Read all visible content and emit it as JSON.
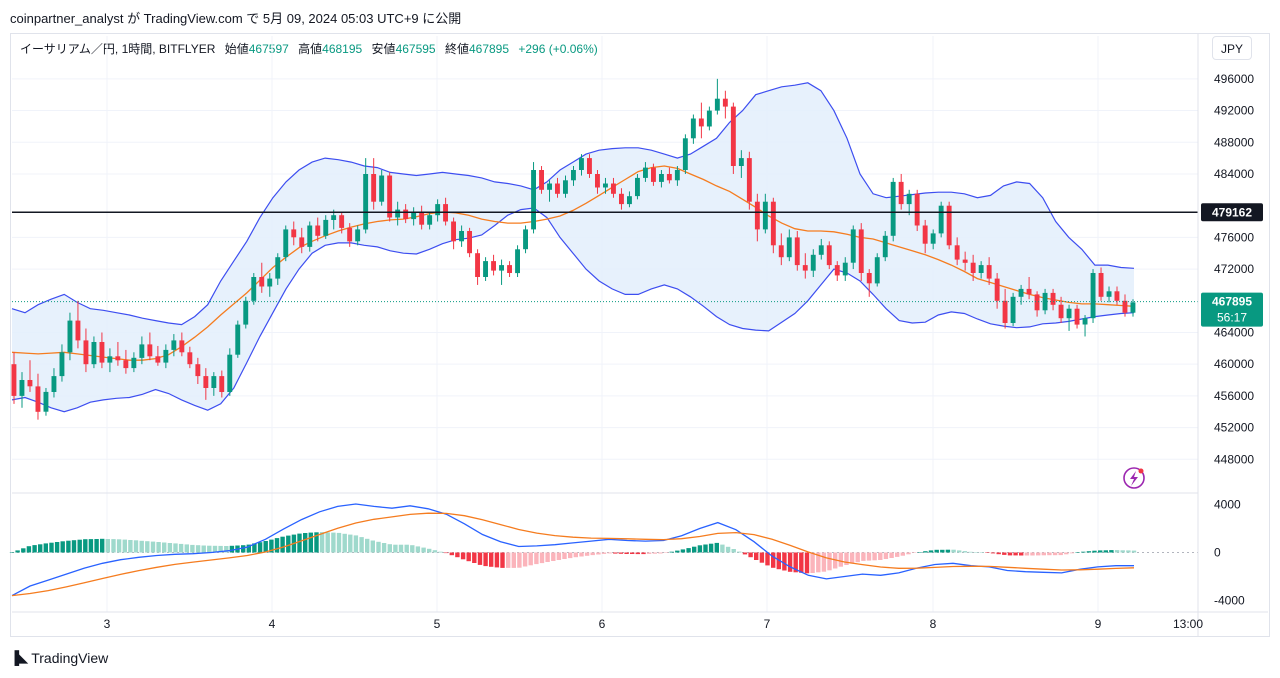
{
  "header": {
    "published_text": "coinpartner_analyst が TradingView.com で 5月 09, 2024 05:03 UTC+9 に公開"
  },
  "legend": {
    "symbol": "イーサリアム／円, 1時間, BITFLYER",
    "open_label": "始値",
    "open_value": "467597",
    "high_label": "高値",
    "high_value": "468195",
    "low_label": "安値",
    "low_value": "467595",
    "close_label": "終値",
    "close_value": "467895",
    "change": "+296 (+0.06%)"
  },
  "currency_button": "JPY",
  "brand": {
    "name": "TradingView"
  },
  "colors": {
    "up": "#089981",
    "down": "#f23645",
    "bb_band": "#3d4ef0",
    "bb_fill": "#e3effb",
    "sma": "#f57c1f",
    "hline": "#131722",
    "macd_pos_strong": "#089981",
    "macd_pos_weak": "#9fd9cc",
    "macd_neg_strong": "#f23645",
    "macd_neg_weak": "#fbb4bb"
  },
  "chart_data": {
    "type": "candlestick",
    "price_axis": {
      "ticks": [
        "496000",
        "492000",
        "488000",
        "484000",
        "476000",
        "472000",
        "464000",
        "460000",
        "456000",
        "452000",
        "448000"
      ],
      "range": [
        444000,
        498000
      ]
    },
    "time_axis": {
      "ticks": [
        "3",
        "4",
        "5",
        "6",
        "7",
        "8",
        "9",
        "13:00"
      ]
    },
    "horizontal_line": {
      "value": 479162,
      "label": "479162"
    },
    "last_price": {
      "value": 467895,
      "label": "467895",
      "countdown": "56:17"
    },
    "macd_axis": {
      "ticks": [
        "4000",
        "0",
        "-4000"
      ],
      "range": [
        -4800,
        4800
      ]
    },
    "candles_ohlc": [
      [
        460000,
        461500,
        455000,
        456000
      ],
      [
        456000,
        459000,
        454500,
        458000
      ],
      [
        458000,
        460500,
        456500,
        457200
      ],
      [
        457200,
        458800,
        453000,
        454000
      ],
      [
        454000,
        457000,
        453500,
        456500
      ],
      [
        456500,
        459500,
        455800,
        458500
      ],
      [
        458500,
        462500,
        457800,
        461500
      ],
      [
        461500,
        466500,
        460500,
        465500
      ],
      [
        465500,
        468000,
        462000,
        463000
      ],
      [
        463000,
        464500,
        459000,
        460000
      ],
      [
        460000,
        463500,
        459500,
        462800
      ],
      [
        462800,
        464000,
        459500,
        460200
      ],
      [
        460200,
        462000,
        459000,
        461000
      ],
      [
        461000,
        462800,
        459800,
        460500
      ],
      [
        460500,
        461800,
        458800,
        459500
      ],
      [
        459500,
        461500,
        459000,
        460800
      ],
      [
        460800,
        463500,
        460000,
        462500
      ],
      [
        462500,
        464000,
        460500,
        461000
      ],
      [
        461000,
        462300,
        459800,
        460200
      ],
      [
        460200,
        462500,
        459500,
        461800
      ],
      [
        461800,
        463800,
        461000,
        463000
      ],
      [
        463000,
        464000,
        461000,
        461500
      ],
      [
        461500,
        462200,
        459500,
        460000
      ],
      [
        460000,
        460800,
        457500,
        458500
      ],
      [
        458500,
        459500,
        455500,
        457000
      ],
      [
        457000,
        459000,
        456000,
        458500
      ],
      [
        458500,
        459200,
        455800,
        456500
      ],
      [
        456500,
        462000,
        456000,
        461200
      ],
      [
        461200,
        465500,
        460800,
        465000
      ],
      [
        465000,
        468500,
        464500,
        468000
      ],
      [
        468000,
        471500,
        467500,
        471000
      ],
      [
        471000,
        472800,
        469000,
        469800
      ],
      [
        469800,
        471500,
        468500,
        470800
      ],
      [
        470800,
        474000,
        470000,
        473500
      ],
      [
        473500,
        477500,
        473000,
        477000
      ],
      [
        477000,
        478000,
        475000,
        476000
      ],
      [
        476000,
        477200,
        474000,
        474800
      ],
      [
        474800,
        478000,
        474200,
        477500
      ],
      [
        477500,
        478500,
        475500,
        476200
      ],
      [
        476200,
        478800,
        475800,
        478200
      ],
      [
        478200,
        479500,
        477000,
        478800
      ],
      [
        478800,
        479200,
        476500,
        477200
      ],
      [
        477200,
        477800,
        474800,
        475500
      ],
      [
        475500,
        477500,
        475000,
        477000
      ],
      [
        477000,
        486000,
        476500,
        484000
      ],
      [
        484000,
        486000,
        479500,
        480500
      ],
      [
        480500,
        484500,
        480000,
        483800
      ],
      [
        483800,
        484200,
        478000,
        478500
      ],
      [
        478500,
        480500,
        477500,
        479500
      ],
      [
        479500,
        480200,
        477800,
        478300
      ],
      [
        478300,
        479800,
        477500,
        479200
      ],
      [
        479200,
        480000,
        477000,
        477600
      ],
      [
        477600,
        479200,
        477000,
        478800
      ],
      [
        478800,
        480800,
        478000,
        480200
      ],
      [
        480200,
        481000,
        477500,
        478000
      ],
      [
        478000,
        478500,
        474500,
        475500
      ],
      [
        475500,
        477500,
        474800,
        476800
      ],
      [
        476800,
        477200,
        473500,
        474000
      ],
      [
        474000,
        474500,
        470000,
        471000
      ],
      [
        471000,
        473500,
        470500,
        473000
      ],
      [
        473000,
        473800,
        471200,
        471800
      ],
      [
        471800,
        473200,
        470000,
        472500
      ],
      [
        472500,
        473000,
        471000,
        471500
      ],
      [
        471500,
        475000,
        471000,
        474500
      ],
      [
        474500,
        477500,
        474000,
        477000
      ],
      [
        477000,
        485500,
        476500,
        484500
      ],
      [
        484500,
        485000,
        481500,
        482000
      ],
      [
        482000,
        483200,
        480500,
        482800
      ],
      [
        482800,
        483500,
        481000,
        481500
      ],
      [
        481500,
        483800,
        481000,
        483200
      ],
      [
        483200,
        485000,
        482500,
        484500
      ],
      [
        484500,
        486500,
        483800,
        486000
      ],
      [
        486000,
        486500,
        483500,
        484000
      ],
      [
        484000,
        484500,
        481500,
        482300
      ],
      [
        482300,
        483500,
        481500,
        482800
      ],
      [
        482800,
        483500,
        481000,
        481500
      ],
      [
        481500,
        482200,
        479500,
        480200
      ],
      [
        480200,
        481800,
        479800,
        481200
      ],
      [
        481200,
        484000,
        480800,
        483500
      ],
      [
        483500,
        485500,
        483000,
        484800
      ],
      [
        484800,
        485300,
        482500,
        483000
      ],
      [
        483000,
        484500,
        482300,
        484000
      ],
      [
        484000,
        484800,
        482800,
        483200
      ],
      [
        483200,
        485000,
        482500,
        484500
      ],
      [
        484500,
        489000,
        484000,
        488500
      ],
      [
        488500,
        491500,
        487800,
        491000
      ],
      [
        491000,
        493000,
        488500,
        490000
      ],
      [
        490000,
        492500,
        489500,
        492000
      ],
      [
        492000,
        496000,
        491500,
        493500
      ],
      [
        493500,
        494500,
        491000,
        492500
      ],
      [
        492500,
        493000,
        484000,
        485000
      ],
      [
        485000,
        487000,
        483500,
        486000
      ],
      [
        486000,
        486800,
        479500,
        480500
      ],
      [
        480500,
        481500,
        475500,
        477000
      ],
      [
        477000,
        481500,
        476500,
        480500
      ],
      [
        480500,
        481000,
        474000,
        475000
      ],
      [
        475000,
        476500,
        472500,
        473500
      ],
      [
        473500,
        477000,
        473000,
        476000
      ],
      [
        476000,
        476800,
        471800,
        472500
      ],
      [
        472500,
        474000,
        470800,
        471800
      ],
      [
        471800,
        474500,
        471000,
        473800
      ],
      [
        473800,
        475800,
        473200,
        475000
      ],
      [
        475000,
        475500,
        472000,
        472500
      ],
      [
        472500,
        473000,
        470500,
        471200
      ],
      [
        471200,
        473500,
        470500,
        472800
      ],
      [
        472800,
        477500,
        472000,
        477000
      ],
      [
        477000,
        477800,
        470500,
        471500
      ],
      [
        471500,
        472000,
        468500,
        470200
      ],
      [
        470200,
        474000,
        469800,
        473500
      ],
      [
        473500,
        476800,
        473000,
        476200
      ],
      [
        476200,
        483500,
        475500,
        483000
      ],
      [
        483000,
        484000,
        479500,
        480200
      ],
      [
        480200,
        482000,
        478800,
        481500
      ],
      [
        481500,
        482000,
        476800,
        477500
      ],
      [
        477500,
        478200,
        474000,
        475200
      ],
      [
        475200,
        477000,
        474500,
        476500
      ],
      [
        476500,
        480500,
        476000,
        480000
      ],
      [
        480000,
        480500,
        474500,
        475000
      ],
      [
        475000,
        476000,
        472500,
        473200
      ],
      [
        473200,
        474200,
        471800,
        472800
      ],
      [
        472800,
        473800,
        470500,
        471500
      ],
      [
        471500,
        473000,
        470800,
        472500
      ],
      [
        472500,
        473500,
        470000,
        470800
      ],
      [
        470800,
        471500,
        467000,
        468000
      ],
      [
        468000,
        469500,
        464500,
        465200
      ],
      [
        465200,
        469000,
        464800,
        468500
      ],
      [
        468500,
        470000,
        467500,
        469500
      ],
      [
        469500,
        471000,
        468200,
        468800
      ],
      [
        468800,
        469200,
        466000,
        466800
      ],
      [
        466800,
        469500,
        466300,
        469000
      ],
      [
        469000,
        469500,
        466800,
        467500
      ],
      [
        467500,
        468500,
        465200,
        465800
      ],
      [
        465800,
        467500,
        464200,
        467000
      ],
      [
        467000,
        467500,
        464500,
        465000
      ],
      [
        465000,
        466200,
        463500,
        465800
      ],
      [
        465800,
        472000,
        465200,
        471500
      ],
      [
        471500,
        472200,
        468000,
        468500
      ],
      [
        468500,
        469800,
        467800,
        469200
      ],
      [
        469200,
        469800,
        467500,
        468000
      ],
      [
        468000,
        468800,
        466000,
        466500
      ],
      [
        466500,
        468200,
        466000,
        467800
      ]
    ],
    "bb_upper": [
      467000,
      466500,
      467500,
      468200,
      468800,
      467800,
      467000,
      466800,
      466500,
      466200,
      465800,
      465500,
      465200,
      465000,
      466000,
      467500,
      470500,
      473000,
      475500,
      478500,
      481000,
      483000,
      484500,
      485500,
      486000,
      485800,
      485500,
      485000,
      484800,
      484200,
      484000,
      483800,
      484000,
      484200,
      484000,
      483800,
      483500,
      483000,
      482800,
      482500,
      482000,
      483000,
      484500,
      485500,
      486500,
      487000,
      487200,
      487300,
      487300,
      487000,
      486500,
      486000,
      486500,
      487500,
      488500,
      490500,
      492000,
      494000,
      494500,
      495000,
      495200,
      495500,
      494500,
      492000,
      488500,
      484000,
      481500,
      481000,
      481200,
      481400,
      481600,
      481700,
      481700,
      481500,
      481000,
      481300,
      482500,
      483000,
      482800,
      481000,
      478000,
      476000,
      474500,
      472500,
      472500,
      472200,
      472100
    ],
    "bb_middle": [
      461500,
      461400,
      461300,
      461400,
      461500,
      461300,
      461100,
      460900,
      460700,
      460500,
      460500,
      460700,
      461200,
      462200,
      463400,
      464700,
      466200,
      467600,
      469000,
      470600,
      472200,
      473500,
      474700,
      475500,
      476200,
      476800,
      477300,
      477700,
      478000,
      478200,
      478300,
      478600,
      479000,
      479200,
      479100,
      478800,
      478300,
      478000,
      477800,
      477800,
      478000,
      478300,
      478700,
      479400,
      480300,
      481300,
      482300,
      483300,
      484300,
      484800,
      485000,
      484700,
      484000,
      483300,
      482500,
      481800,
      480800,
      479800,
      478700,
      477800,
      477100,
      476800,
      476800,
      476700,
      476400,
      476000,
      475800,
      475300,
      474800,
      474300,
      473800,
      473200,
      472500,
      471700,
      470800,
      470300,
      469800,
      469300,
      468800,
      468400,
      468100,
      467800,
      467600,
      467600,
      467500,
      467400,
      467300
    ],
    "bb_lower": [
      455500,
      455800,
      455200,
      454500,
      454000,
      454500,
      455200,
      455500,
      455700,
      455800,
      456200,
      456800,
      456300,
      455500,
      454800,
      454200,
      455000,
      457000,
      460200,
      463500,
      466500,
      469500,
      472000,
      474000,
      475000,
      475300,
      475300,
      475000,
      474800,
      474300,
      474000,
      473900,
      474500,
      475200,
      475700,
      475900,
      476300,
      477500,
      478800,
      479500,
      479700,
      478500,
      476000,
      474000,
      472000,
      470500,
      469500,
      468800,
      468800,
      469500,
      470000,
      469500,
      468500,
      467300,
      466000,
      465000,
      464500,
      464300,
      464200,
      465300,
      466400,
      468000,
      470000,
      472000,
      471500,
      470500,
      468800,
      467000,
      465500,
      465200,
      465300,
      466200,
      466600,
      466400,
      465700,
      465100,
      464800,
      464600,
      464700,
      465100,
      465200,
      465400,
      465700,
      466000,
      466200,
      466400,
      466500
    ],
    "macd_line": [
      -3600,
      -2800,
      -2300,
      -1800,
      -1300,
      -900,
      -600,
      -400,
      -250,
      -150,
      -100,
      0,
      150,
      450,
      1100,
      1950,
      2750,
      3400,
      3850,
      4050,
      3850,
      3700,
      3900,
      3650,
      3200,
      2400,
      1500,
      900,
      500,
      550,
      650,
      800,
      950,
      1100,
      1000,
      950,
      1000,
      1400,
      2000,
      2500,
      1900,
      900,
      -300,
      -1200,
      -1900,
      -2200,
      -2000,
      -1800,
      -1900,
      -1700,
      -1300,
      -1000,
      -900,
      -1100,
      -1200,
      -1500,
      -1600,
      -1650,
      -1700,
      -1400,
      -1200,
      -1100,
      -1100
    ]
  }
}
